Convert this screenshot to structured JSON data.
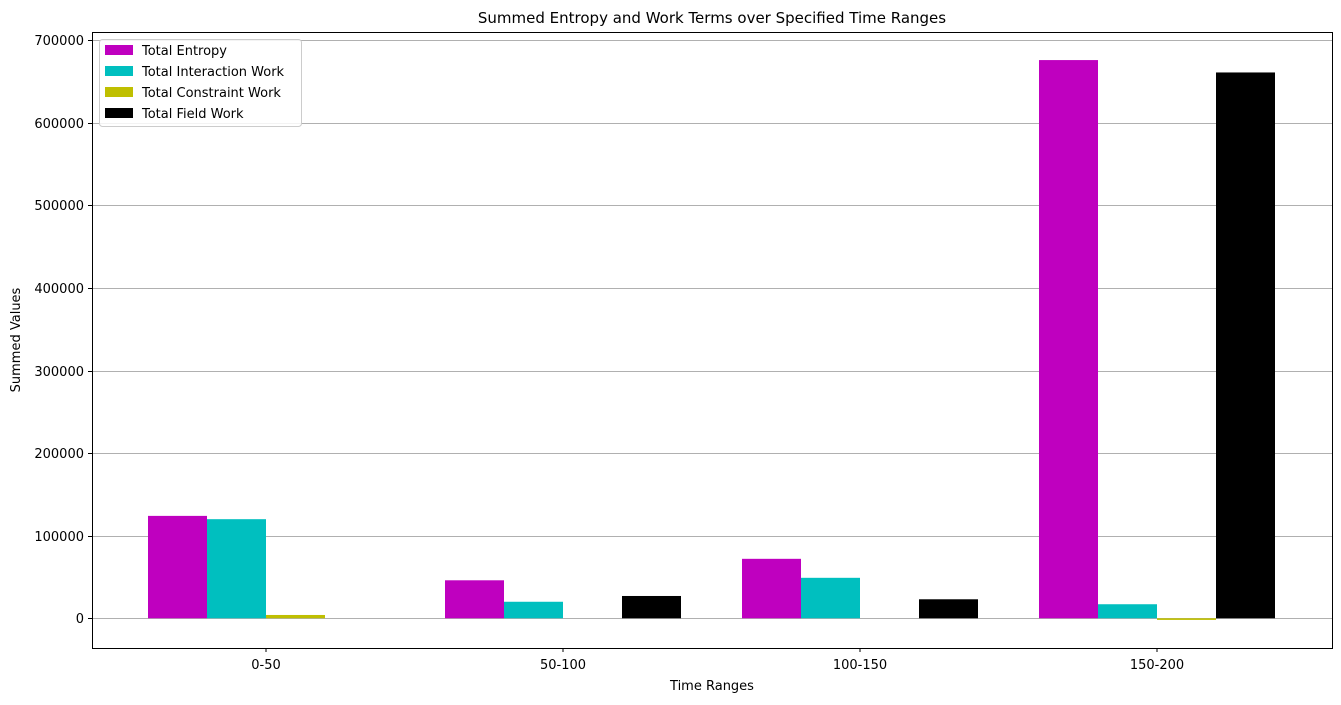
{
  "chart_data": {
    "type": "bar",
    "title": "Summed Entropy and Work Terms over Specified Time Ranges",
    "xlabel": "Time Ranges",
    "ylabel": "Summed Values",
    "categories": [
      "0-50",
      "50-100",
      "100-150",
      "150-200"
    ],
    "series": [
      {
        "name": "Total Entropy",
        "color": "#bf00bf",
        "values": [
          124000,
          46000,
          72000,
          676000
        ]
      },
      {
        "name": "Total Interaction Work",
        "color": "#00bfbf",
        "values": [
          120000,
          20000,
          49000,
          17000
        ]
      },
      {
        "name": "Total Constraint Work",
        "color": "#bfbf00",
        "values": [
          4000,
          0,
          0,
          -2000
        ]
      },
      {
        "name": "Total Field Work",
        "color": "#000000",
        "values": [
          0,
          27000,
          23000,
          661000
        ]
      }
    ],
    "y_ticks": [
      0,
      100000,
      200000,
      300000,
      400000,
      500000,
      600000,
      700000
    ],
    "ylim": [
      -36000,
      710000
    ],
    "grid": "horizontal",
    "legend_position": "top-left"
  }
}
